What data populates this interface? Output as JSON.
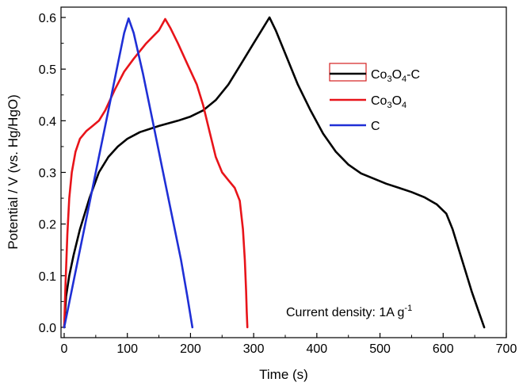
{
  "chart_data": {
    "type": "line",
    "xlabel": "Time (s)",
    "ylabel": "Potential / V (vs. Hg/HgO)",
    "xlim": [
      -5,
      700
    ],
    "ylim": [
      -0.02,
      0.62
    ],
    "x_ticks": [
      "0",
      "100",
      "200",
      "300",
      "400",
      "500",
      "600",
      "700"
    ],
    "y_ticks": [
      "0.0",
      "0.1",
      "0.2",
      "0.3",
      "0.4",
      "0.5",
      "0.6"
    ],
    "annotation": {
      "text": "Current density: 1A g",
      "superscript": "-1"
    },
    "legend_placement": "upper-right",
    "series": [
      {
        "name": "Co3O4-C",
        "legend": {
          "base": "Co",
          "sub1": "3",
          "mid": "O",
          "sub2": "4",
          "suffix": "-C"
        },
        "color": "#000000",
        "points": [
          [
            0,
            0
          ],
          [
            3,
            0.06
          ],
          [
            8,
            0.1
          ],
          [
            15,
            0.14
          ],
          [
            25,
            0.19
          ],
          [
            40,
            0.25
          ],
          [
            55,
            0.3
          ],
          [
            70,
            0.33
          ],
          [
            85,
            0.35
          ],
          [
            100,
            0.365
          ],
          [
            120,
            0.378
          ],
          [
            150,
            0.39
          ],
          [
            180,
            0.4
          ],
          [
            200,
            0.408
          ],
          [
            220,
            0.42
          ],
          [
            240,
            0.44
          ],
          [
            260,
            0.47
          ],
          [
            280,
            0.51
          ],
          [
            300,
            0.55
          ],
          [
            315,
            0.58
          ],
          [
            325,
            0.6
          ],
          [
            335,
            0.575
          ],
          [
            350,
            0.53
          ],
          [
            370,
            0.47
          ],
          [
            390,
            0.42
          ],
          [
            410,
            0.375
          ],
          [
            430,
            0.34
          ],
          [
            450,
            0.315
          ],
          [
            470,
            0.298
          ],
          [
            490,
            0.288
          ],
          [
            510,
            0.278
          ],
          [
            530,
            0.27
          ],
          [
            550,
            0.262
          ],
          [
            570,
            0.252
          ],
          [
            590,
            0.238
          ],
          [
            605,
            0.22
          ],
          [
            615,
            0.19
          ],
          [
            625,
            0.15
          ],
          [
            635,
            0.11
          ],
          [
            645,
            0.07
          ],
          [
            655,
            0.035
          ],
          [
            665,
            0
          ]
        ]
      },
      {
        "name": "Co3O4",
        "legend": {
          "base": "Co",
          "sub1": "3",
          "mid": "O",
          "sub2": "4",
          "suffix": ""
        },
        "color": "#e8141a",
        "points": [
          [
            0,
            0
          ],
          [
            2,
            0.08
          ],
          [
            5,
            0.18
          ],
          [
            8,
            0.25
          ],
          [
            12,
            0.3
          ],
          [
            18,
            0.34
          ],
          [
            25,
            0.365
          ],
          [
            35,
            0.38
          ],
          [
            45,
            0.39
          ],
          [
            55,
            0.4
          ],
          [
            65,
            0.42
          ],
          [
            80,
            0.46
          ],
          [
            95,
            0.495
          ],
          [
            110,
            0.52
          ],
          [
            130,
            0.55
          ],
          [
            150,
            0.575
          ],
          [
            160,
            0.597
          ],
          [
            168,
            0.58
          ],
          [
            180,
            0.55
          ],
          [
            195,
            0.51
          ],
          [
            210,
            0.47
          ],
          [
            220,
            0.43
          ],
          [
            230,
            0.38
          ],
          [
            240,
            0.33
          ],
          [
            250,
            0.3
          ],
          [
            260,
            0.285
          ],
          [
            270,
            0.27
          ],
          [
            278,
            0.245
          ],
          [
            283,
            0.19
          ],
          [
            286,
            0.13
          ],
          [
            288,
            0.07
          ],
          [
            289,
            0.03
          ],
          [
            290,
            0
          ]
        ]
      },
      {
        "name": "C",
        "legend": {
          "base": "C",
          "sub1": "",
          "mid": "",
          "sub2": "",
          "suffix": ""
        },
        "color": "#1f2fd6",
        "points": [
          [
            0,
            0
          ],
          [
            10,
            0.06
          ],
          [
            25,
            0.15
          ],
          [
            40,
            0.24
          ],
          [
            55,
            0.33
          ],
          [
            70,
            0.42
          ],
          [
            85,
            0.51
          ],
          [
            95,
            0.57
          ],
          [
            102,
            0.598
          ],
          [
            110,
            0.57
          ],
          [
            125,
            0.49
          ],
          [
            140,
            0.4
          ],
          [
            155,
            0.31
          ],
          [
            170,
            0.22
          ],
          [
            185,
            0.13
          ],
          [
            195,
            0.06
          ],
          [
            203,
            0
          ]
        ]
      }
    ]
  }
}
